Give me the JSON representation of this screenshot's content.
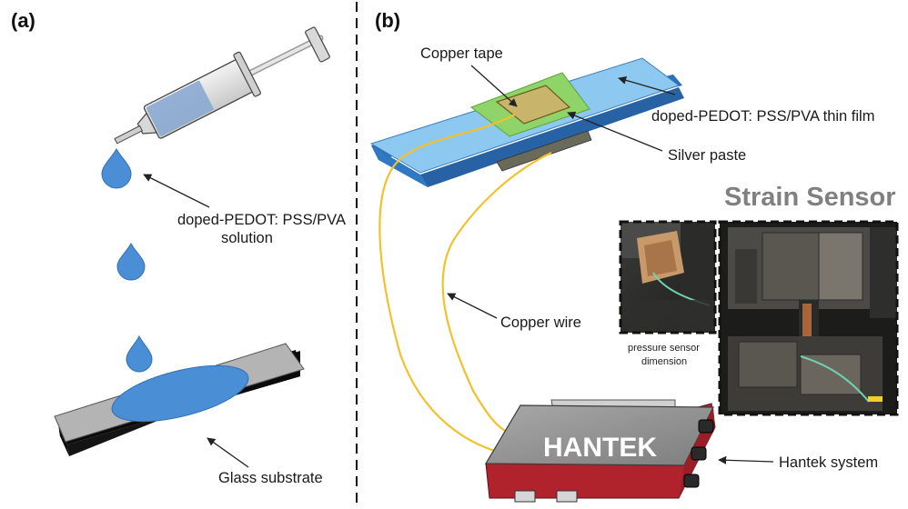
{
  "panels": {
    "a": "(a)",
    "b": "(b)"
  },
  "labels": {
    "solution_line1": "doped-PEDOT: PSS/PVA",
    "solution_line2": "solution",
    "glass_substrate": "Glass substrate",
    "copper_tape": "Copper tape",
    "thin_film": "doped-PEDOT: PSS/PVA thin film",
    "silver_paste": "Silver paste",
    "copper_wire": "Copper wire",
    "hantek_system": "Hantek system",
    "device_brand": "HANTEK",
    "strain_sensor_title": "Strain Sensor",
    "photo_caption_line1": "pressure sensor",
    "photo_caption_line2": "dimension"
  },
  "colors": {
    "solution_blue": "#4a8fd6",
    "film_blue": "#8cc8f0",
    "silver_paste_green": "#8fd468",
    "copper_tape": "#c8b46a",
    "wire_yellow": "#f2c12e",
    "device_grey": "#8c8c8c",
    "device_red": "#b0232d",
    "substrate_grey": "#b4b4b4"
  }
}
